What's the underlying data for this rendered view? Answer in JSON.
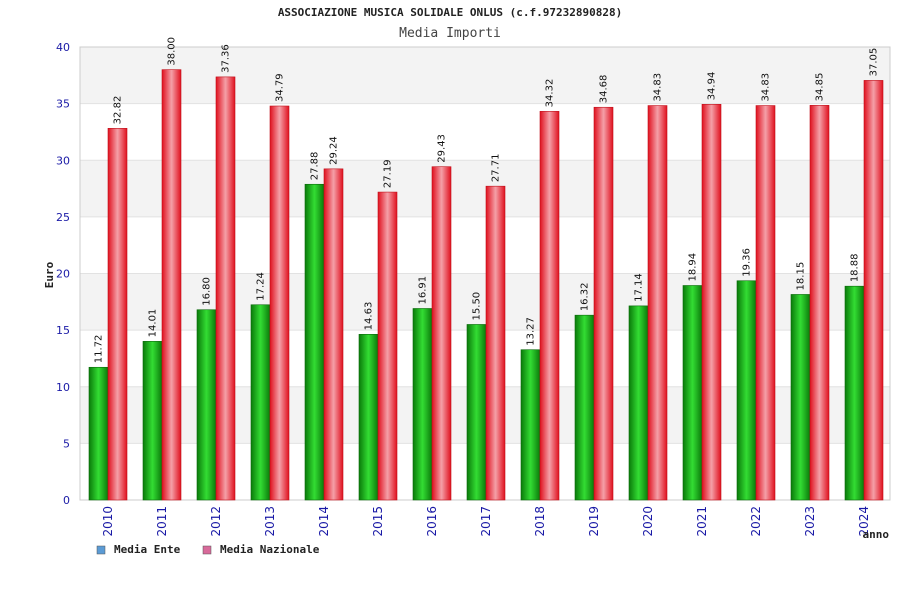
{
  "chart_data": {
    "type": "bar",
    "title": "ASSOCIAZIONE MUSICA SOLIDALE ONLUS (c.f.97232890828)",
    "subtitle": "Media Importi",
    "xlabel": "anno",
    "ylabel": "Euro",
    "ylim": [
      0,
      40
    ],
    "yticks": [
      0,
      5,
      10,
      15,
      20,
      25,
      30,
      35,
      40
    ],
    "grid": true,
    "legend_position": "bottom-left",
    "categories": [
      "2010",
      "2011",
      "2012",
      "2013",
      "2014",
      "2015",
      "2016",
      "2017",
      "2018",
      "2019",
      "2020",
      "2021",
      "2022",
      "2023",
      "2024"
    ],
    "series": [
      {
        "name": "Media Ente",
        "color": "#1ea01e",
        "legend_color": "#5b9bd5",
        "values": [
          11.72,
          14.01,
          16.8,
          17.24,
          27.88,
          14.63,
          16.91,
          15.5,
          13.27,
          16.32,
          17.14,
          18.94,
          19.36,
          18.15,
          18.88
        ],
        "labels": [
          "11.72",
          "14.01",
          "16.80",
          "17.24",
          "27.88",
          "14.63",
          "16.91",
          "15.50",
          "13.27",
          "16.32",
          "17.14",
          "18.94",
          "19.36",
          "18.15",
          "18.88"
        ]
      },
      {
        "name": "Media Nazionale",
        "color": "#e8202a",
        "legend_color": "#d86a9a",
        "values": [
          32.82,
          38.0,
          37.36,
          34.79,
          29.24,
          27.19,
          29.43,
          27.71,
          34.32,
          34.68,
          34.83,
          34.94,
          34.83,
          34.85,
          37.05
        ],
        "labels": [
          "32.82",
          "38.00",
          "37.36",
          "34.79",
          "29.24",
          "27.19",
          "29.43",
          "27.71",
          "34.32",
          "34.68",
          "34.83",
          "34.94",
          "34.83",
          "34.85",
          "37.05"
        ]
      }
    ]
  }
}
